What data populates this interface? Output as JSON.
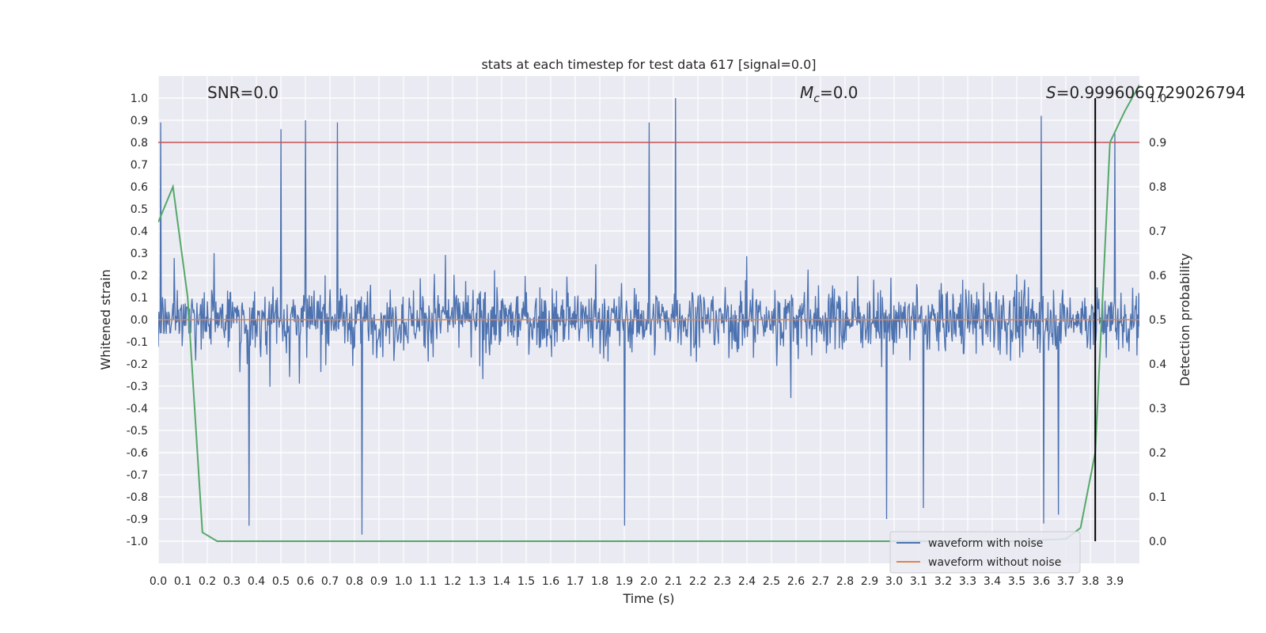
{
  "chart_data": {
    "type": "line",
    "title": "stats at each timestep for test data 617 [signal=0.0]",
    "xlabel": "Time (s)",
    "ylabel": "Whitened strain",
    "ylabel_right": "Detection probability",
    "xlim": [
      0.0,
      4.0
    ],
    "ylim": [
      -1.1,
      1.1
    ],
    "ylim_right": [
      -0.05,
      1.05
    ],
    "x_ticks": [
      "0.0",
      "0.1",
      "0.2",
      "0.3",
      "0.4",
      "0.5",
      "0.6",
      "0.7",
      "0.8",
      "0.9",
      "1.0",
      "1.1",
      "1.2",
      "1.3",
      "1.4",
      "1.5",
      "1.6",
      "1.7",
      "1.8",
      "1.9",
      "2.0",
      "2.1",
      "2.2",
      "2.3",
      "2.4",
      "2.5",
      "2.6",
      "2.7",
      "2.8",
      "2.9",
      "3.0",
      "3.1",
      "3.2",
      "3.3",
      "3.4",
      "3.5",
      "3.6",
      "3.7",
      "3.8",
      "3.9"
    ],
    "y_ticks": [
      "-1.0",
      "-0.9",
      "-0.8",
      "-0.7",
      "-0.6",
      "-0.5",
      "-0.4",
      "-0.3",
      "-0.2",
      "-0.1",
      "0.0",
      "0.1",
      "0.2",
      "0.3",
      "0.4",
      "0.5",
      "0.6",
      "0.7",
      "0.8",
      "0.9",
      "1.0"
    ],
    "y_ticks_right": [
      "0.0",
      "0.1",
      "0.2",
      "0.3",
      "0.4",
      "0.5",
      "0.6",
      "0.7",
      "0.8",
      "0.9",
      "1.0"
    ],
    "grid": true,
    "legend_position": "lower-right",
    "annotations": {
      "snr": "SNR=0.0",
      "mc_symbol": "M",
      "mc_sub": "c",
      "mc_value": "=0.0",
      "s_symbol": "S",
      "s_value": "=0.9996060729026794"
    },
    "threshold": {
      "y": 0.8,
      "color": "#c44e52"
    },
    "marker_time": 3.82,
    "series": [
      {
        "name": "waveform with noise",
        "color": "#4c72b0",
        "axis": "left",
        "kind": "noise",
        "sample_count": 1600,
        "amplitude_range": [
          -0.97,
          1.0
        ],
        "peaks": [
          [
            0.01,
            0.89
          ],
          [
            0.5,
            0.86
          ],
          [
            0.6,
            0.9
          ],
          [
            0.73,
            0.89
          ],
          [
            2.0,
            0.89
          ],
          [
            2.11,
            1.0
          ],
          [
            3.6,
            0.92
          ],
          [
            3.9,
            0.84
          ],
          [
            0.83,
            -0.97
          ],
          [
            0.37,
            -0.93
          ],
          [
            1.9,
            -0.93
          ],
          [
            2.97,
            -0.9
          ],
          [
            3.12,
            -0.85
          ],
          [
            3.61,
            -0.92
          ],
          [
            3.67,
            -0.88
          ]
        ]
      },
      {
        "name": "waveform without noise",
        "color": "#dd8452",
        "axis": "left",
        "x": [
          0.0,
          4.0
        ],
        "y": [
          0.0,
          0.0
        ]
      },
      {
        "name": "",
        "color": "#55a868",
        "axis": "right",
        "x": [
          0.0,
          0.06,
          0.12,
          0.18,
          0.24,
          0.3,
          3.0,
          3.5,
          3.7,
          3.76,
          3.82,
          3.88,
          3.94,
          4.0
        ],
        "y": [
          0.72,
          0.8,
          0.55,
          0.02,
          0.0,
          0.0,
          0.0,
          0.0,
          0.005,
          0.03,
          0.2,
          0.9,
          0.97,
          1.03
        ]
      }
    ]
  }
}
